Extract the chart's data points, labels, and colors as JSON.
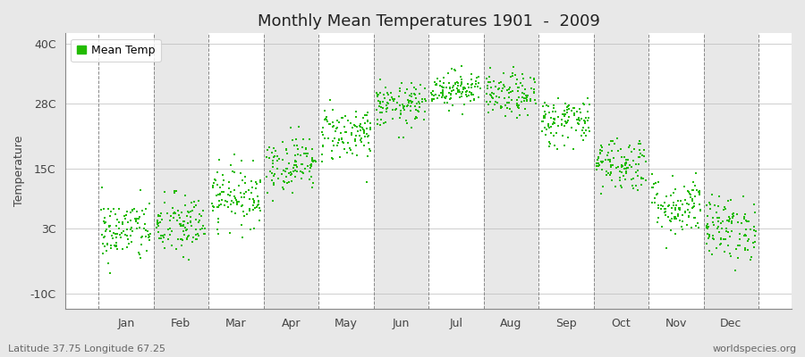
{
  "title": "Monthly Mean Temperatures 1901  -  2009",
  "ylabel": "Temperature",
  "xlabel_labels": [
    "Jan",
    "Feb",
    "Mar",
    "Apr",
    "May",
    "Jun",
    "Jul",
    "Aug",
    "Sep",
    "Oct",
    "Nov",
    "Dec"
  ],
  "ytick_labels": [
    "-10C",
    "3C",
    "15C",
    "28C",
    "40C"
  ],
  "ytick_values": [
    -10,
    3,
    15,
    28,
    40
  ],
  "ylim": [
    -13,
    42
  ],
  "xlim": [
    -0.6,
    12.6
  ],
  "dot_color": "#22bb00",
  "dot_size": 4,
  "legend_label": "Mean Temp",
  "bg_color": "#e8e8e8",
  "plot_bg_color": "#ffffff",
  "band_color_dark": "#e8e8e8",
  "grid_color": "#888888",
  "footnote_left": "Latitude 37.75 Longitude 67.25",
  "footnote_right": "worldspecies.org",
  "monthly_means": [
    2.5,
    3.5,
    9.5,
    16.0,
    22.0,
    27.5,
    31.0,
    29.5,
    24.5,
    16.0,
    7.5,
    3.0
  ],
  "monthly_stds": [
    3.2,
    3.2,
    3.0,
    2.8,
    2.8,
    2.2,
    1.8,
    2.2,
    2.5,
    2.8,
    3.0,
    3.2
  ],
  "n_years": 109
}
